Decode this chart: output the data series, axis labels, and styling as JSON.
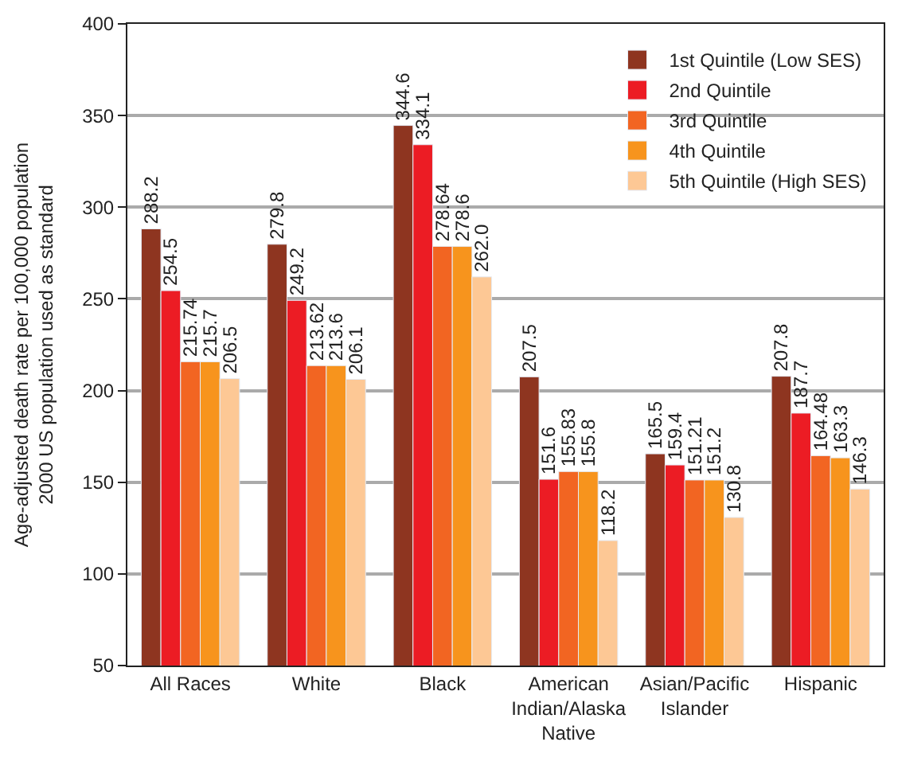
{
  "chart_data": {
    "type": "bar",
    "ylabel": "Age-adjusted death rate per 100,000 population\n2000 US population used as standard",
    "categories": [
      "All Races",
      "White",
      "Black",
      "American\nIndian/Alaska\nNative",
      "Asian/Pacific\nIslander",
      "Hispanic"
    ],
    "series": [
      {
        "name": "1st Quintile (Low SES)",
        "color": "#8e3520",
        "values": [
          288.2,
          279.8,
          344.6,
          207.5,
          165.5,
          207.8
        ],
        "value_labels": [
          "288.2",
          "279.8",
          "344.6",
          "207.5",
          "165.5",
          "207.8"
        ]
      },
      {
        "name": "2nd Quintile",
        "color": "#ec1c24",
        "values": [
          254.5,
          249.2,
          334.1,
          151.6,
          159.4,
          187.7
        ],
        "value_labels": [
          "254.5",
          "249.2",
          "334.1",
          "151.6",
          "159.4",
          "187.7"
        ]
      },
      {
        "name": "3rd Quintile",
        "color": "#f26522",
        "values": [
          215.74,
          213.62,
          278.64,
          155.83,
          151.21,
          164.48
        ],
        "value_labels": [
          "215.74",
          "213.62",
          "278.64",
          "155.83",
          "151.21",
          "164.48"
        ]
      },
      {
        "name": "4th Quintile",
        "color": "#f7941d",
        "values": [
          215.7,
          213.6,
          278.6,
          155.8,
          151.2,
          163.3
        ],
        "value_labels": [
          "215.7",
          "213.6",
          "278.6",
          "155.8",
          "151.2",
          "163.3"
        ]
      },
      {
        "name": "5th Quintile (High SES)",
        "color": "#fdc895",
        "values": [
          206.5,
          206.1,
          262.0,
          118.2,
          130.8,
          146.3
        ],
        "value_labels": [
          "206.5",
          "206.1",
          "262.0",
          "118.2",
          "130.8",
          "146.3"
        ]
      }
    ],
    "ylim": [
      50,
      400
    ],
    "yticks": [
      50,
      100,
      150,
      200,
      250,
      300,
      350,
      400
    ],
    "grid": "y",
    "legend": "top right"
  }
}
